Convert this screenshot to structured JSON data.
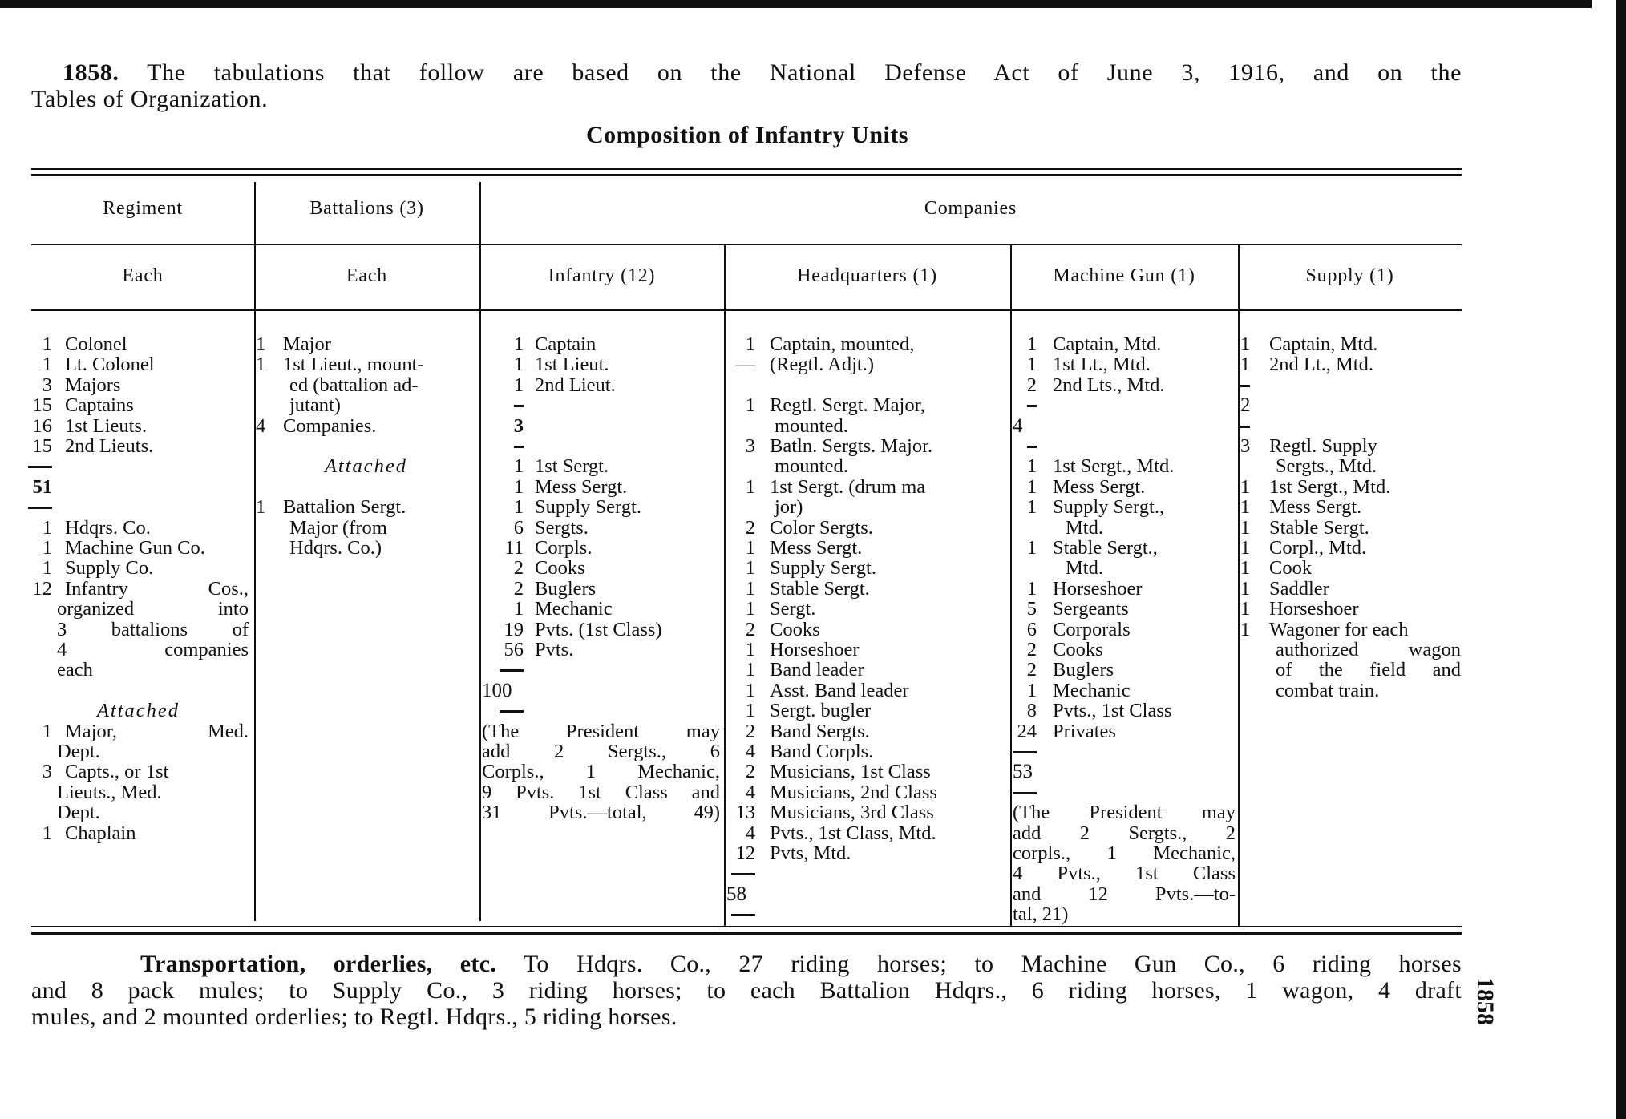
{
  "intro": {
    "number": "1858.",
    "line1": "The tabulations that follow are based on the National Defense Act of June 3, 1916, and on the",
    "line2": "Tables of Organization."
  },
  "title": "Composition of Infantry Units",
  "header": {
    "regiment": "Regiment",
    "battalions": "Battalions (3)",
    "companies": "Companies",
    "each1": "Each",
    "each2": "Each",
    "infantry": "Infantry (12)",
    "headquarters": "Headquarters (1)",
    "machine_gun": "Machine Gun (1)",
    "supply": "Supply (1)"
  },
  "columns": {
    "regiment": [
      {
        "n": "1",
        "t": "Colonel"
      },
      {
        "n": "1",
        "t": "Lt. Colonel"
      },
      {
        "n": "3",
        "t": "Majors"
      },
      {
        "n": "15",
        "t": "Captains"
      },
      {
        "n": "16",
        "t": "1st Lieuts."
      },
      {
        "n": "15",
        "t": "2nd Lieuts."
      },
      {
        "k": "rule"
      },
      {
        "n": "51",
        "k": "b"
      },
      {
        "k": "rule"
      },
      {
        "n": "1",
        "t": "Hdqrs. Co."
      },
      {
        "n": "1",
        "t": "Machine Gun Co."
      },
      {
        "n": "1",
        "t": "Supply Co."
      },
      {
        "n": "12",
        "t": "Infantry Cos.,",
        "k": "wide"
      },
      {
        "t": "organized into",
        "k": "ip"
      },
      {
        "t": "3 battalions of",
        "k": "ip"
      },
      {
        "t": "4 companies",
        "k": "ip"
      },
      {
        "t": "each",
        "k": "i"
      },
      {},
      {
        "t": "Attached",
        "k": "att"
      },
      {
        "n": "1",
        "t": "Major, Med.",
        "k": "wide"
      },
      {
        "t": "Dept.",
        "k": "i"
      },
      {
        "n": "3",
        "t": "Capts., or 1st"
      },
      {
        "t": "Lieuts., Med.",
        "k": "i"
      },
      {
        "t": "Dept.",
        "k": "i"
      },
      {
        "n": "1",
        "t": "Chaplain"
      }
    ],
    "battalions": [
      {
        "n": "1",
        "t": "Major"
      },
      {
        "n": "1",
        "t": "1st Lieut., mount-"
      },
      {
        "t": "ed (battalion ad-",
        "k": "i"
      },
      {
        "t": "jutant)",
        "k": "i"
      },
      {
        "n": "4",
        "t": "Companies."
      },
      {},
      {
        "t": "Attached",
        "k": "att"
      },
      {},
      {
        "n": "1",
        "t": "Battalion Sergt."
      },
      {
        "t": "Major (from",
        "k": "i"
      },
      {
        "t": "Hdqrs. Co.)",
        "k": "i"
      }
    ],
    "infantry": [
      {
        "n": "1",
        "t": "Captain"
      },
      {
        "n": "1",
        "t": "1st Lieut."
      },
      {
        "n": "1",
        "t": "2nd Lieut."
      },
      {
        "k": "short"
      },
      {
        "n": "3",
        "k": "b"
      },
      {
        "k": "short"
      },
      {
        "n": "1",
        "t": "1st Sergt."
      },
      {
        "n": "1",
        "t": "Mess Sergt."
      },
      {
        "n": "1",
        "t": "Supply Sergt."
      },
      {
        "n": "6",
        "t": "Sergts."
      },
      {
        "n": "11",
        "t": "Corpls."
      },
      {
        "n": "2",
        "t": "Cooks"
      },
      {
        "n": "2",
        "t": "Buglers"
      },
      {
        "n": "1",
        "t": "Mechanic"
      },
      {
        "n": "19",
        "t": "Pvts. (1st Class)"
      },
      {
        "n": "56",
        "t": "Pvts."
      },
      {
        "k": "rule"
      },
      {
        "t": "100",
        "k": "flush"
      },
      {
        "k": "rule"
      },
      {
        "t": "(The President may",
        "k": "p"
      },
      {
        "t": "add 2 Sergts., 6",
        "k": "p"
      },
      {
        "t": "Corpls., 1 Mechanic,",
        "k": "p"
      },
      {
        "t": "9 Pvts. 1st Class and",
        "k": "p"
      },
      {
        "t": "31 Pvts.—total, 49)",
        "k": "p"
      }
    ],
    "headquarters": [
      {
        "n": "1",
        "t": "Captain, mounted,"
      },
      {
        "n": "—",
        "t": "(Regtl. Adjt.)"
      },
      {},
      {
        "n": "1",
        "t": "Regtl. Sergt. Major,"
      },
      {
        "t": "mounted.",
        "k": "i"
      },
      {
        "n": "3",
        "t": "Batln. Sergts. Major."
      },
      {
        "t": "mounted.",
        "k": "i"
      },
      {
        "n": "1",
        "t": "1st Sergt. (drum ma"
      },
      {
        "t": "jor)",
        "k": "i"
      },
      {
        "n": "2",
        "t": "Color Sergts."
      },
      {
        "n": "1",
        "t": "Mess Sergt."
      },
      {
        "n": "1",
        "t": "Supply Sergt."
      },
      {
        "n": "1",
        "t": "Stable Sergt."
      },
      {
        "n": "1",
        "t": "Sergt."
      },
      {
        "n": "2",
        "t": "Cooks"
      },
      {
        "n": "1",
        "t": "Horseshoer"
      },
      {
        "n": "1",
        "t": "Band leader"
      },
      {
        "n": "1",
        "t": "Asst. Band leader"
      },
      {
        "n": "1",
        "t": "Sergt. bugler"
      },
      {
        "n": "2",
        "t": "Band Sergts."
      },
      {
        "n": "4",
        "t": "Band Corpls."
      },
      {
        "n": "2",
        "t": "Musicians, 1st Class"
      },
      {
        "n": "4",
        "t": "Musicians, 2nd Class"
      },
      {
        "n": "13",
        "t": "Musicians, 3rd Class"
      },
      {
        "n": "4",
        "t": "Pvts., 1st Class, Mtd."
      },
      {
        "n": "12",
        "t": "Pvts, Mtd."
      },
      {
        "k": "rule"
      },
      {
        "t": "58",
        "k": "flush"
      },
      {
        "k": "rule"
      }
    ],
    "machine_gun": [
      {
        "n": "1",
        "t": "Captain, Mtd."
      },
      {
        "n": "1",
        "t": "1st Lt., Mtd."
      },
      {
        "n": "2",
        "t": "2nd Lts., Mtd."
      },
      {
        "k": "short"
      },
      {
        "t": "4",
        "k": "flush"
      },
      {
        "k": "short"
      },
      {
        "n": "1",
        "t": "1st Sergt., Mtd."
      },
      {
        "n": "1",
        "t": "Mess Sergt."
      },
      {
        "n": "1",
        "t": "Supply Sergt.,"
      },
      {
        "t": "Mtd.",
        "k": "i"
      },
      {
        "n": "1",
        "t": "Stable Sergt.,"
      },
      {
        "t": "Mtd.",
        "k": "i"
      },
      {
        "n": "1",
        "t": "Horseshoer"
      },
      {
        "n": "5",
        "t": "Sergeants"
      },
      {
        "n": "6",
        "t": "Corporals"
      },
      {
        "n": "2",
        "t": "Cooks"
      },
      {
        "n": "2",
        "t": "Buglers"
      },
      {
        "n": "1",
        "t": "Mechanic"
      },
      {
        "n": "8",
        "t": "Pvts., 1st Class"
      },
      {
        "n": "24",
        "t": "Privates"
      },
      {
        "k": "rule"
      },
      {
        "t": "53",
        "k": "flush"
      },
      {
        "k": "rule"
      },
      {
        "t": "(The President may",
        "k": "p"
      },
      {
        "t": "add 2 Sergts., 2",
        "k": "p"
      },
      {
        "t": "corpls., 1 Mechanic,",
        "k": "p"
      },
      {
        "t": "4 Pvts., 1st Class",
        "k": "p"
      },
      {
        "t": "and 12 Pvts.—to-",
        "k": "p"
      },
      {
        "t": "tal, 21)",
        "k": "pl"
      }
    ],
    "supply": [
      {
        "n": "1",
        "t": "Captain, Mtd."
      },
      {
        "n": "1",
        "t": "2nd Lt., Mtd."
      },
      {
        "k": "short"
      },
      {
        "t": "2",
        "k": "flush"
      },
      {
        "k": "short"
      },
      {
        "n": "3",
        "t": "Regtl. Supply"
      },
      {
        "t": "Sergts., Mtd.",
        "k": "i"
      },
      {
        "n": "1",
        "t": "1st Sergt., Mtd."
      },
      {
        "n": "1",
        "t": "Mess Sergt."
      },
      {
        "n": "1",
        "t": "Stable Sergt."
      },
      {
        "n": "1",
        "t": "Corpl., Mtd."
      },
      {
        "n": "1",
        "t": "Cook"
      },
      {
        "n": "1",
        "t": "Saddler"
      },
      {
        "n": "1",
        "t": "Horseshoer"
      },
      {
        "n": "1",
        "t": "Wagoner for each"
      },
      {
        "t": "authorized wagon",
        "k": "ip"
      },
      {
        "t": "of the field and",
        "k": "ip"
      },
      {
        "t": "combat train.",
        "k": "i"
      }
    ]
  },
  "footer": {
    "heading": "Transportation, orderlies, etc.",
    "line1": "To Hdqrs. Co., 27 riding horses; to Machine Gun Co., 6 riding horses",
    "line2": "and 8 pack mules; to Supply Co., 3 riding horses; to each Battalion Hdqrs., 6 riding horses, 1 wagon, 4 draft",
    "line3": "mules, and 2 mounted orderlies; to Regtl. Hdqrs., 5 riding horses."
  },
  "page_number": "1858"
}
